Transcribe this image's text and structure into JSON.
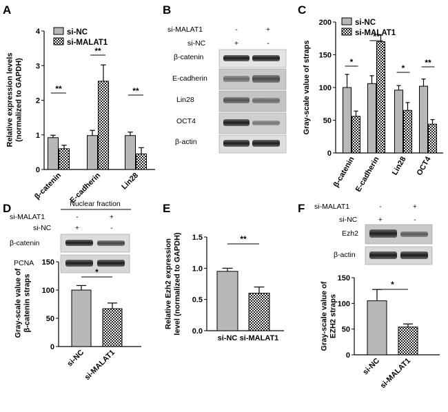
{
  "panels": [
    {
      "label": "A"
    },
    {
      "label": "B"
    },
    {
      "label": "C"
    },
    {
      "label": "D"
    },
    {
      "label": "E"
    },
    {
      "label": "F"
    }
  ],
  "chart_data": [
    {
      "id": "A",
      "type": "bar",
      "ylabel": "Relative expression levels\n(normalized to GAPDH)",
      "ylim": [
        0,
        4
      ],
      "yticks": [
        "0",
        "1",
        "2",
        "3",
        "4"
      ],
      "categories": [
        "β-catenin",
        "E-cadherin",
        "Lin28"
      ],
      "series": [
        {
          "name": "si-NC",
          "values": [
            0.92,
            0.98,
            0.98
          ],
          "errors": [
            0.07,
            0.15,
            0.1
          ]
        },
        {
          "name": "si-MALAT1",
          "values": [
            0.6,
            2.55,
            0.45
          ],
          "errors": [
            0.1,
            0.47,
            0.18
          ]
        }
      ],
      "significance": [
        "**",
        "**",
        "**"
      ],
      "legend": "top-right"
    },
    {
      "id": "C",
      "type": "bar",
      "ylabel": "Gray-scale value of straps",
      "ylim": [
        0,
        200
      ],
      "yticks": [
        "0",
        "50",
        "100",
        "150",
        "200"
      ],
      "categories": [
        "β-catenin",
        "E-cadherin",
        "Lin28",
        "OCT4"
      ],
      "series": [
        {
          "name": "si-NC",
          "values": [
            100,
            106,
            96,
            102
          ],
          "errors": [
            20,
            12,
            7,
            11
          ]
        },
        {
          "name": "si-MALAT1",
          "values": [
            56,
            170,
            65,
            44
          ],
          "errors": [
            8,
            10,
            12,
            7
          ]
        }
      ],
      "significance": [
        "*",
        "**",
        "*",
        "**"
      ],
      "legend": "top"
    },
    {
      "id": "D",
      "type": "bar",
      "ylabel": "Gray-scale value of\nβ-catenin straps",
      "ylim": [
        0,
        150
      ],
      "yticks": [
        "0",
        "50",
        "100",
        "150"
      ],
      "categories": [
        "si-NC",
        "si-MALAT1"
      ],
      "values": [
        100,
        67
      ],
      "errors": [
        8,
        10
      ],
      "significance": "*"
    },
    {
      "id": "E",
      "type": "bar",
      "ylabel": "Relative Ezh2 expression\nlevel (normalized to GAPDH)",
      "ylim": [
        0,
        1.5
      ],
      "yticks": [
        "0.0",
        "0.5",
        "1.0",
        "1.5"
      ],
      "categories": [
        "si-NC",
        "si-MALAT1"
      ],
      "values": [
        0.95,
        0.6
      ],
      "errors": [
        0.05,
        0.1
      ],
      "significance": "**"
    },
    {
      "id": "F",
      "type": "bar",
      "ylabel": "Gray-scale value of\nEZH2 straps",
      "ylim": [
        0,
        150
      ],
      "yticks": [
        "0",
        "50",
        "100",
        "150"
      ],
      "categories": [
        "si-NC",
        "si-MALAT1"
      ],
      "values": [
        105,
        54
      ],
      "errors": [
        22,
        6
      ],
      "significance": "*"
    }
  ],
  "blots": {
    "B": {
      "conditions": [
        {
          "name": "si-MALAT1",
          "signs": [
            "-",
            "+"
          ]
        },
        {
          "name": "si-NC",
          "signs": [
            "+",
            "-"
          ]
        }
      ],
      "rows": [
        "β-catenin",
        "E-cadherin",
        "Lin28",
        "OCT4",
        "β-actin"
      ]
    },
    "D": {
      "title": "Nuclear fraction",
      "conditions": [
        {
          "name": "si-MALAT1",
          "signs": [
            "-",
            "+"
          ]
        },
        {
          "name": "si-NC",
          "signs": [
            "+",
            "-"
          ]
        }
      ],
      "rows": [
        "β-catenin",
        "PCNA"
      ]
    },
    "F": {
      "conditions": [
        {
          "name": "si-MALAT1",
          "signs": [
            "-",
            "+"
          ]
        },
        {
          "name": "si-NC",
          "signs": [
            "+",
            "-"
          ]
        }
      ],
      "rows": [
        "Ezh2",
        "β-actin"
      ]
    }
  }
}
